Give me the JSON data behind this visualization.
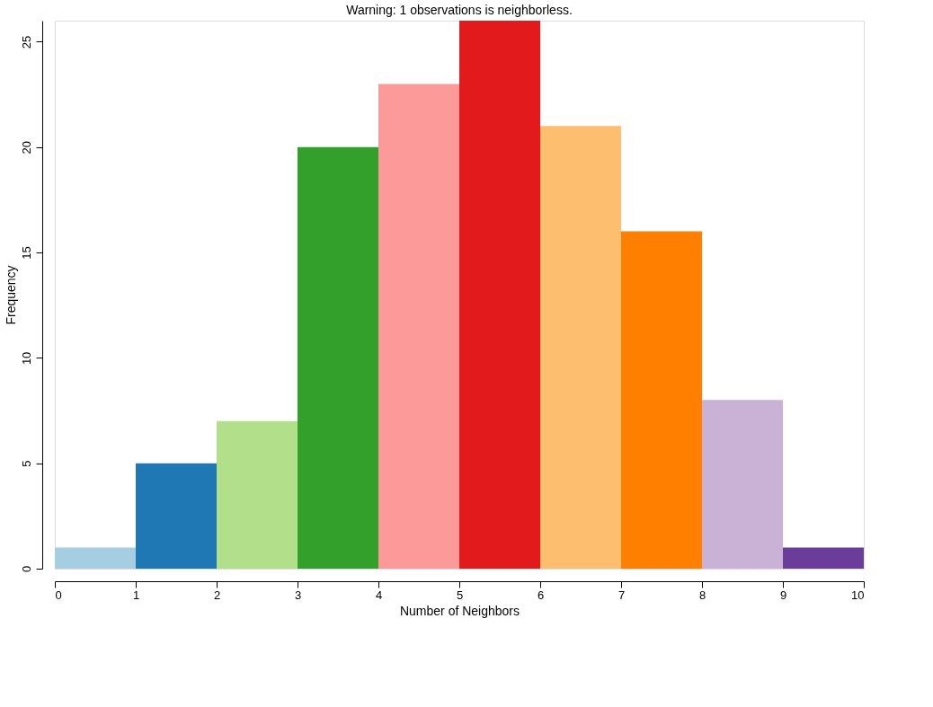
{
  "chart_data": {
    "type": "histogram",
    "title": "Warning: 1 observations is neighborless.",
    "xlabel": "Number of Neighbors",
    "ylabel": "Frequency",
    "bins": [
      0,
      1,
      2,
      3,
      4,
      5,
      6,
      7,
      8,
      9,
      10
    ],
    "values": [
      1,
      5,
      7,
      20,
      23,
      26,
      21,
      16,
      8,
      1
    ],
    "colors": [
      "#a6cee3",
      "#1f78b4",
      "#b2df8a",
      "#33a02c",
      "#fb9a99",
      "#e31a1c",
      "#fdbf6f",
      "#ff7f00",
      "#cab2d6",
      "#6a3d9a"
    ],
    "xlim": [
      0,
      10
    ],
    "xticks": [
      0,
      1,
      2,
      3,
      4,
      5,
      6,
      7,
      8,
      9,
      10
    ],
    "ylim": [
      0,
      26
    ],
    "yticks": [
      0,
      5,
      10,
      15,
      20,
      25
    ],
    "grid": false,
    "legend": false
  }
}
